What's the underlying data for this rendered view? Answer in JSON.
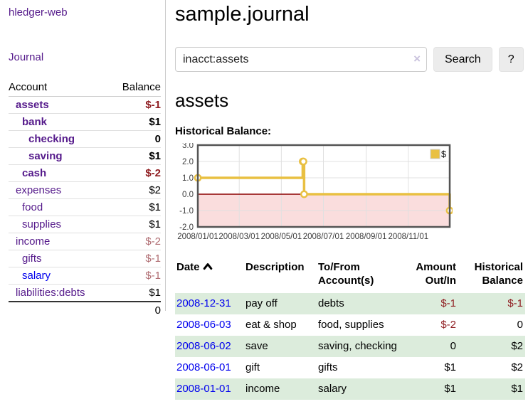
{
  "app": {
    "brand": "hledger-web"
  },
  "nav": {
    "journal": "Journal"
  },
  "sidebar": {
    "headers": {
      "account": "Account",
      "balance": "Balance"
    },
    "accounts": [
      {
        "name": "assets",
        "balance": "$-1",
        "indent": 1,
        "bold": true,
        "link_color": "purple"
      },
      {
        "name": "bank",
        "balance": "$1",
        "indent": 2,
        "bold": true,
        "link_color": "purple"
      },
      {
        "name": "checking",
        "balance": "0",
        "indent": 3,
        "bold": true,
        "link_color": "purple"
      },
      {
        "name": "saving",
        "balance": "$1",
        "indent": 3,
        "bold": true,
        "link_color": "purple"
      },
      {
        "name": "cash",
        "balance": "$-2",
        "indent": 2,
        "bold": true,
        "link_color": "purple"
      },
      {
        "name": "expenses",
        "balance": "$2",
        "indent": 1,
        "bold": false,
        "link_color": "purple"
      },
      {
        "name": "food",
        "balance": "$1",
        "indent": 2,
        "bold": false,
        "link_color": "purple"
      },
      {
        "name": "supplies",
        "balance": "$1",
        "indent": 2,
        "bold": false,
        "link_color": "purple"
      },
      {
        "name": "income",
        "balance": "$-2",
        "indent": 1,
        "bold": false,
        "link_color": "purple"
      },
      {
        "name": "gifts",
        "balance": "$-1",
        "indent": 2,
        "bold": false,
        "link_color": "purple"
      },
      {
        "name": "salary",
        "balance": "$-1",
        "indent": 2,
        "bold": false,
        "link_color": "blue"
      },
      {
        "name": "liabilities:debts",
        "balance": "$1",
        "indent": 1,
        "bold": false,
        "link_color": "purple"
      }
    ],
    "total": "0"
  },
  "main": {
    "title": "sample.journal",
    "search": {
      "query": "inacct:assets",
      "clear_icon": "×",
      "button": "Search",
      "help": "?"
    },
    "account_heading": "assets",
    "chart_heading": "Historical Balance:"
  },
  "chart_data": {
    "type": "line",
    "style": "step-after",
    "title": "Historical Balance",
    "xlabel": "",
    "ylabel": "",
    "series": [
      {
        "name": "$",
        "points": [
          {
            "x": "2008-01-01",
            "y": 1
          },
          {
            "x": "2008-06-01",
            "y": 2
          },
          {
            "x": "2008-06-02",
            "y": 2
          },
          {
            "x": "2008-06-03",
            "y": 0
          },
          {
            "x": "2008-12-31",
            "y": -1
          }
        ]
      }
    ],
    "xlim": [
      "2008-01-01",
      "2008-12-31"
    ],
    "ylim": [
      -2,
      3
    ],
    "x_ticks": [
      "2008/01/01",
      "2008/03/01",
      "2008/05/01",
      "2008/07/01",
      "2008/09/01",
      "2008/11/01"
    ],
    "y_ticks": [
      "3.0",
      "2.0",
      "1.0",
      "0.0",
      "-1.0",
      "-2.0"
    ],
    "grid": true,
    "legend": {
      "label": "$",
      "position": "top-right"
    },
    "colors": {
      "line": "#e9c042",
      "negative_region": "#fadddd",
      "zero_line": "#8b0000",
      "grid": "#e0e0e0",
      "border": "#545454"
    }
  },
  "transactions": {
    "headers": {
      "date": "Date",
      "description": "Description",
      "accounts": "To/From Account(s)",
      "amount": "Amount Out/In",
      "balance": "Historical Balance"
    },
    "sort": {
      "column": "date",
      "direction": "ascending"
    },
    "rows": [
      {
        "date": "2008-12-31",
        "description": "pay off",
        "accounts": "debts",
        "amount": "$-1",
        "balance": "$-1"
      },
      {
        "date": "2008-06-03",
        "description": "eat & shop",
        "accounts": "food, supplies",
        "amount": "$-2",
        "balance": "0"
      },
      {
        "date": "2008-06-02",
        "description": "save",
        "accounts": "saving, checking",
        "amount": "0",
        "balance": "$2"
      },
      {
        "date": "2008-06-01",
        "description": "gift",
        "accounts": "gifts",
        "amount": "$1",
        "balance": "$2"
      },
      {
        "date": "2008-01-01",
        "description": "income",
        "accounts": "salary",
        "amount": "$1",
        "balance": "$1"
      }
    ]
  },
  "colors": {
    "link_purple": "#551a8b",
    "link_blue": "#0000ee",
    "negative_strong": "#8f1d21",
    "negative_soft": "#b06d72",
    "row_highlight_green": "#dcecdc"
  }
}
